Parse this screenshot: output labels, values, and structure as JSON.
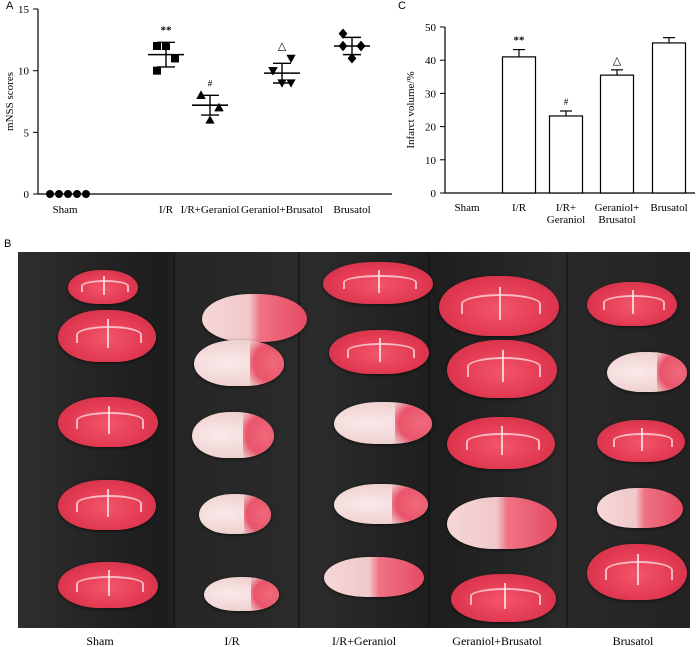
{
  "panel_letters": {
    "a": "A",
    "b": "B",
    "c": "C"
  },
  "photo_labels": [
    "Sham",
    "I/R",
    "I/R+Geraniol",
    "Geraniol+Brusatol",
    "Brusatol"
  ],
  "chart_data": [
    {
      "type": "scatter",
      "panel": "A",
      "ylabel": "mNSS scores",
      "ylim": [
        0,
        15
      ],
      "yticks": [
        0,
        5,
        10,
        15
      ],
      "categories": [
        "Sham",
        "I/R",
        "I/R+Geraniol",
        "Geraniol+Brusatol",
        "Brusatol"
      ],
      "points": [
        [
          0,
          0,
          0,
          0,
          0
        ],
        [
          12,
          11,
          12,
          10,
          11
        ],
        [
          8,
          7,
          6,
          8,
          7
        ],
        [
          10,
          9,
          9,
          10,
          11
        ],
        [
          13,
          12,
          11,
          12,
          12
        ]
      ],
      "mean": [
        0,
        11.3,
        7.2,
        9.8,
        12.0
      ],
      "sd": [
        0,
        1.0,
        0.8,
        0.8,
        0.7
      ],
      "annotations": [
        "",
        "**",
        "#",
        "△",
        ""
      ],
      "marker_shapes": [
        "circle",
        "square",
        "triangle",
        "inverted-triangle",
        "diamond"
      ]
    },
    {
      "type": "bar",
      "panel": "C",
      "ylabel": "Infarct volume/%",
      "ylim": [
        0,
        50
      ],
      "yticks": [
        0,
        10,
        20,
        30,
        40,
        50
      ],
      "categories": [
        "Sham",
        "I/R",
        "I/R+\nGeraniol",
        "Geraniol+\nBrusatol",
        "Brusatol"
      ],
      "values": [
        0,
        41,
        23.2,
        35.5,
        45.2
      ],
      "errors": [
        0,
        2.2,
        1.5,
        1.6,
        1.6
      ],
      "annotations": [
        "",
        "**",
        "#",
        "△",
        ""
      ],
      "bar_color": "#ffffff"
    }
  ]
}
